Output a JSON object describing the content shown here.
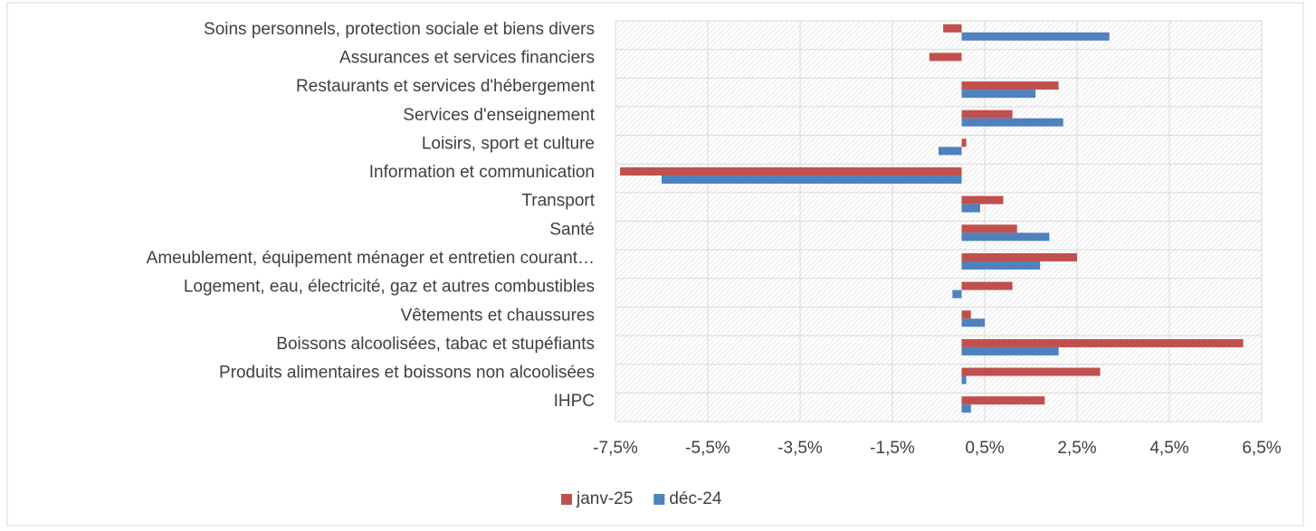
{
  "chart_data": {
    "type": "hbar",
    "categories": [
      "Soins personnels, protection sociale et biens divers",
      "Assurances et services financiers",
      "Restaurants et services d'hébergement",
      "Services d'enseignement",
      "Loisirs, sport et culture",
      "Information et communication",
      "Transport",
      "Santé",
      "Ameublement, équipement ménager et entretien courant…",
      "Logement, eau, électricité, gaz et autres combustibles",
      "Vêtements et chaussures",
      "Boissons alcoolisées, tabac et stupéfiants",
      "Produits alimentaires et boissons non alcoolisées",
      "IHPC"
    ],
    "series": [
      {
        "name": "janv-25",
        "color": "#c0504d",
        "values": [
          -0.4,
          -0.7,
          2.1,
          1.1,
          0.1,
          -7.4,
          0.9,
          1.2,
          2.5,
          1.1,
          0.2,
          6.1,
          3.0,
          1.8
        ]
      },
      {
        "name": "déc-24",
        "color": "#4f81bd",
        "values": [
          3.2,
          0,
          1.6,
          2.2,
          -0.5,
          -6.5,
          0.4,
          1.9,
          1.7,
          -0.2,
          0.5,
          2.1,
          0.1,
          0.2
        ]
      }
    ],
    "xlim": [
      -7.5,
      6.5
    ],
    "xticks": [
      {
        "value": -7.5,
        "label": "-7,5%"
      },
      {
        "value": -5.5,
        "label": "-5,5%"
      },
      {
        "value": -3.5,
        "label": "-3,5%"
      },
      {
        "value": -1.5,
        "label": "-1,5%"
      },
      {
        "value": 0.5,
        "label": "0,5%"
      },
      {
        "value": 2.5,
        "label": "2,5%"
      },
      {
        "value": 4.5,
        "label": "4,5%"
      },
      {
        "value": 6.5,
        "label": "6,5%"
      }
    ],
    "grid": true,
    "legend": "bottom"
  }
}
